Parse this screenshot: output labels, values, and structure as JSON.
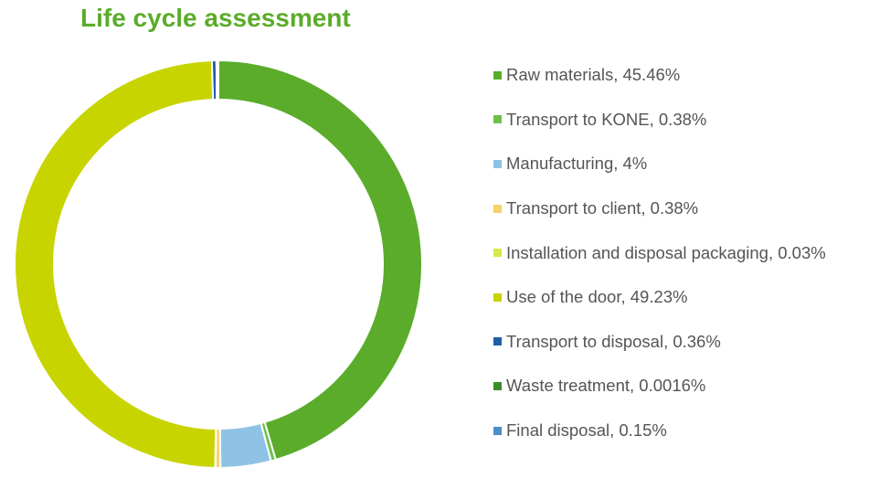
{
  "chart_data": {
    "type": "pie",
    "title": "Life cycle assessment",
    "legend_position": "right",
    "series": [
      {
        "name": "Raw materials",
        "label": "Raw materials, 45.46%",
        "value": 45.46,
        "color": "#5aac2a"
      },
      {
        "name": "Transport to KONE",
        "label": "Transport to KONE, 0.38%",
        "value": 0.38,
        "color": "#6fc04a"
      },
      {
        "name": "Manufacturing",
        "label": "Manufacturing, 4%",
        "value": 4,
        "color": "#8fc3e6"
      },
      {
        "name": "Transport to client",
        "label": "Transport to client, 0.38%",
        "value": 0.38,
        "color": "#f5d26b"
      },
      {
        "name": "Installation and disposal packaging",
        "label": "Installation and disposal packaging, 0.03%",
        "value": 0.03,
        "color": "#d6e84a"
      },
      {
        "name": "Use of the door",
        "label": "Use of the door, 49.23%",
        "value": 49.23,
        "color": "#c8d400"
      },
      {
        "name": "Transport to disposal",
        "label": "Transport to disposal, 0.36%",
        "value": 0.36,
        "color": "#1f5fa8"
      },
      {
        "name": "Waste treatment",
        "label": "Waste treatment, 0.0016%",
        "value": 0.0016,
        "color": "#3c8c2c"
      },
      {
        "name": "Final disposal",
        "label": "Final disposal, 0.15%",
        "value": 0.15,
        "color": "#4a8fc8"
      }
    ]
  }
}
